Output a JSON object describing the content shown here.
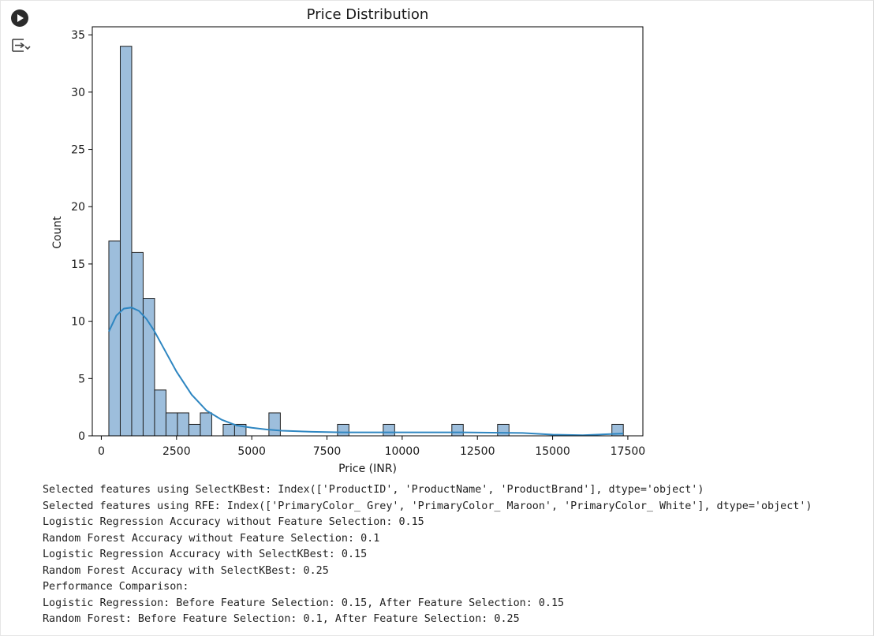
{
  "toolbar": {
    "run_icon": "play-circle-icon",
    "output_icon": "output-toggle-icon"
  },
  "chart_data": {
    "type": "bar",
    "title": "Price Distribution",
    "xlabel": "Price (INR)",
    "ylabel": "Count",
    "xlim": [
      -300,
      18000
    ],
    "ylim": [
      0,
      35.7
    ],
    "xticks": [
      0,
      2500,
      5000,
      7500,
      10000,
      12500,
      15000,
      17500
    ],
    "yticks": [
      0,
      5,
      10,
      15,
      20,
      25,
      30,
      35
    ],
    "bar_color": "#9dbedc",
    "bar_edge": "#1f1f1f",
    "kde_color": "#2e86c1",
    "grid": false,
    "bins": [
      {
        "x0": 250,
        "x1": 630,
        "count": 17
      },
      {
        "x0": 630,
        "x1": 1010,
        "count": 34
      },
      {
        "x0": 1010,
        "x1": 1390,
        "count": 16
      },
      {
        "x0": 1390,
        "x1": 1770,
        "count": 12
      },
      {
        "x0": 1770,
        "x1": 2150,
        "count": 4
      },
      {
        "x0": 2150,
        "x1": 2530,
        "count": 2
      },
      {
        "x0": 2530,
        "x1": 2910,
        "count": 2
      },
      {
        "x0": 2910,
        "x1": 3290,
        "count": 1
      },
      {
        "x0": 3290,
        "x1": 3670,
        "count": 2
      },
      {
        "x0": 4050,
        "x1": 4430,
        "count": 1
      },
      {
        "x0": 4430,
        "x1": 4810,
        "count": 1
      },
      {
        "x0": 5570,
        "x1": 5950,
        "count": 2
      },
      {
        "x0": 7850,
        "x1": 8230,
        "count": 1
      },
      {
        "x0": 9370,
        "x1": 9750,
        "count": 1
      },
      {
        "x0": 11650,
        "x1": 12030,
        "count": 1
      },
      {
        "x0": 13170,
        "x1": 13550,
        "count": 1
      },
      {
        "x0": 16970,
        "x1": 17350,
        "count": 1
      }
    ],
    "kde": {
      "x": [
        250,
        500,
        750,
        1000,
        1250,
        1500,
        1750,
        2000,
        2500,
        3000,
        3500,
        4000,
        4500,
        5000,
        5500,
        6000,
        7000,
        8000,
        10000,
        12000,
        14000,
        15000,
        16000,
        17350
      ],
      "y": [
        9.1,
        10.5,
        11.1,
        11.2,
        10.9,
        10.2,
        9.2,
        8.0,
        5.6,
        3.6,
        2.2,
        1.4,
        0.9,
        0.7,
        0.55,
        0.45,
        0.35,
        0.3,
        0.3,
        0.3,
        0.25,
        0.1,
        0.05,
        0.2
      ]
    }
  },
  "output_lines": [
    "Selected features using SelectKBest: Index(['ProductID', 'ProductName', 'ProductBrand'], dtype='object')",
    "Selected features using RFE: Index(['PrimaryColor_ Grey', 'PrimaryColor_ Maroon', 'PrimaryColor_ White'], dtype='object')",
    "Logistic Regression Accuracy without Feature Selection: 0.15",
    "Random Forest Accuracy without Feature Selection: 0.1",
    "Logistic Regression Accuracy with SelectKBest: 0.15",
    "Random Forest Accuracy with SelectKBest: 0.25",
    "Performance Comparison:",
    "Logistic Regression: Before Feature Selection: 0.15, After Feature Selection: 0.15",
    "Random Forest: Before Feature Selection: 0.1, After Feature Selection: 0.25"
  ]
}
